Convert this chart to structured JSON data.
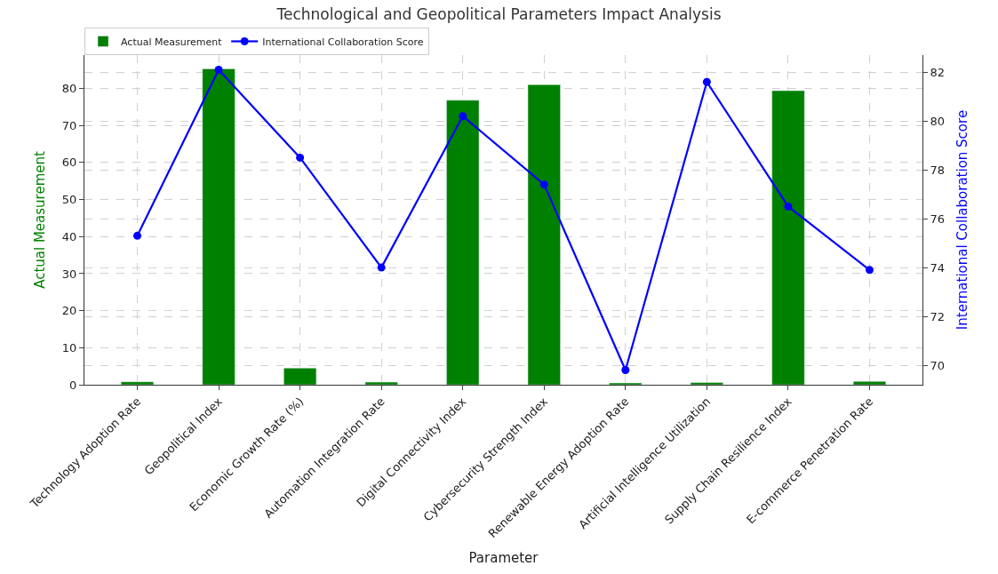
{
  "chart_data": {
    "type": "bar",
    "title": "Technological and Geopolitical Parameters Impact Analysis",
    "xlabel": "Parameter",
    "ylabel": "Actual Measurement",
    "y2label": "International Collaboration Score",
    "categories": [
      "Technology Adoption Rate",
      "Geopolitical Index",
      "Economic Growth Rate (%)",
      "Automation Integration Rate",
      "Digital Connectivity Index",
      "Cybersecurity Strength Index",
      "Renewable Energy Adoption Rate",
      "Artificial Intelligence Utilization",
      "Supply Chain Resilience Index",
      "E-commerce Penetration Rate"
    ],
    "series": [
      {
        "name": "Actual Measurement",
        "color": "#008000",
        "values": [
          0.8,
          85.3,
          4.5,
          0.7,
          76.8,
          81.0,
          0.5,
          0.6,
          79.4,
          0.9
        ]
      },
      {
        "name": "International Collaboration Score",
        "color": "#0000ff",
        "type": "line",
        "axis": "y2",
        "marker": "circle",
        "values": [
          75.3,
          82.1,
          78.5,
          74.0,
          80.2,
          77.4,
          69.8,
          81.6,
          76.5,
          73.9
        ]
      }
    ],
    "ylim": [
      0,
      89
    ],
    "yticks": [
      0,
      10,
      20,
      30,
      40,
      50,
      60,
      70,
      80
    ],
    "y2lim": [
      69.2,
      82.7
    ],
    "y2ticks": [
      70,
      72,
      74,
      76,
      78,
      80,
      82
    ],
    "grid": true,
    "legend": "top left"
  }
}
